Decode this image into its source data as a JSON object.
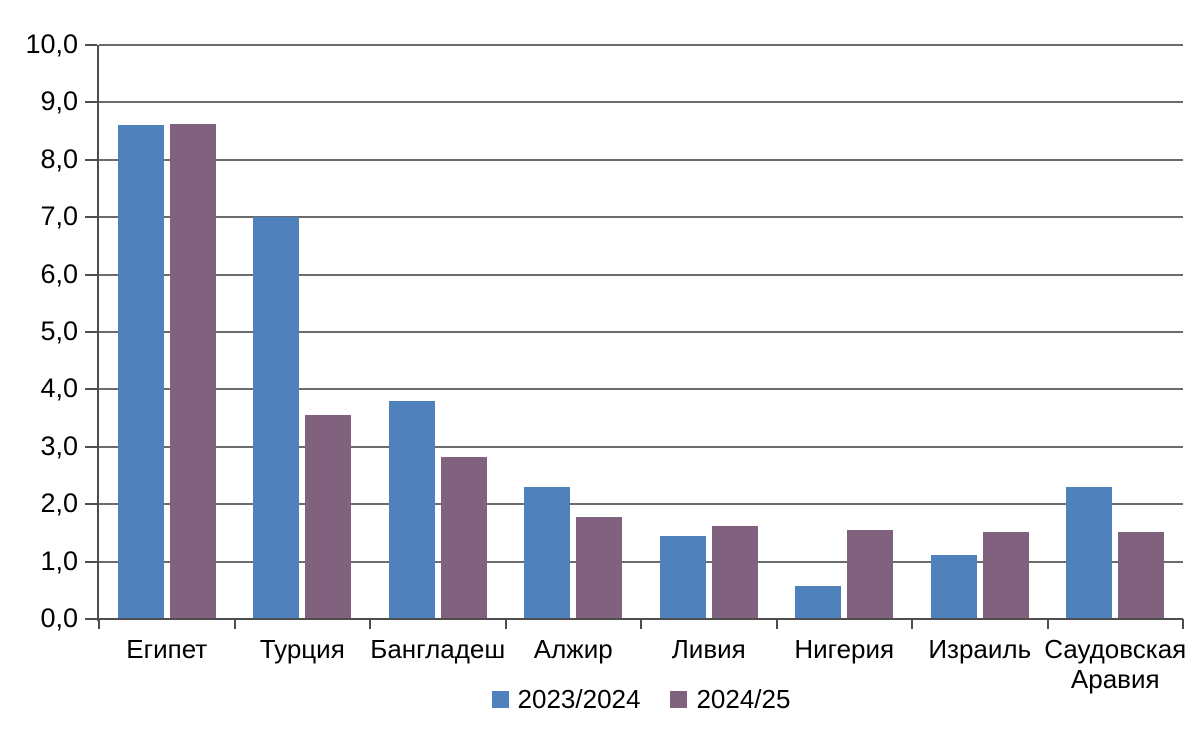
{
  "chart_data": {
    "type": "bar",
    "title": "",
    "xlabel": "",
    "ylabel": "",
    "categories": [
      "Египет",
      "Турция",
      "Бангладеш",
      "Алжир",
      "Ливия",
      "Нигерия",
      "Израиль",
      "Саудовская Аравия"
    ],
    "series": [
      {
        "name": "2023/2024",
        "color": "#4F81BD",
        "values": [
          8.6,
          7.0,
          3.8,
          2.3,
          1.45,
          0.57,
          1.12,
          2.3
        ]
      },
      {
        "name": "2024/25",
        "color": "#80617E",
        "values": [
          8.62,
          3.55,
          2.83,
          1.77,
          1.62,
          1.55,
          1.51,
          1.52
        ]
      }
    ],
    "ylim": [
      0,
      10
    ],
    "ytick_step": 1,
    "ytick_labels": [
      "0,0",
      "1,0",
      "2,0",
      "3,0",
      "4,0",
      "5,0",
      "6,0",
      "7,0",
      "8,0",
      "9,0",
      "10,0"
    ],
    "grid": true,
    "legend_position": "bottom-center"
  },
  "colors": {
    "background": "#ffffff",
    "gridline": "#6b6b6b",
    "axis": "#4d4d4d",
    "text": "#000000"
  }
}
